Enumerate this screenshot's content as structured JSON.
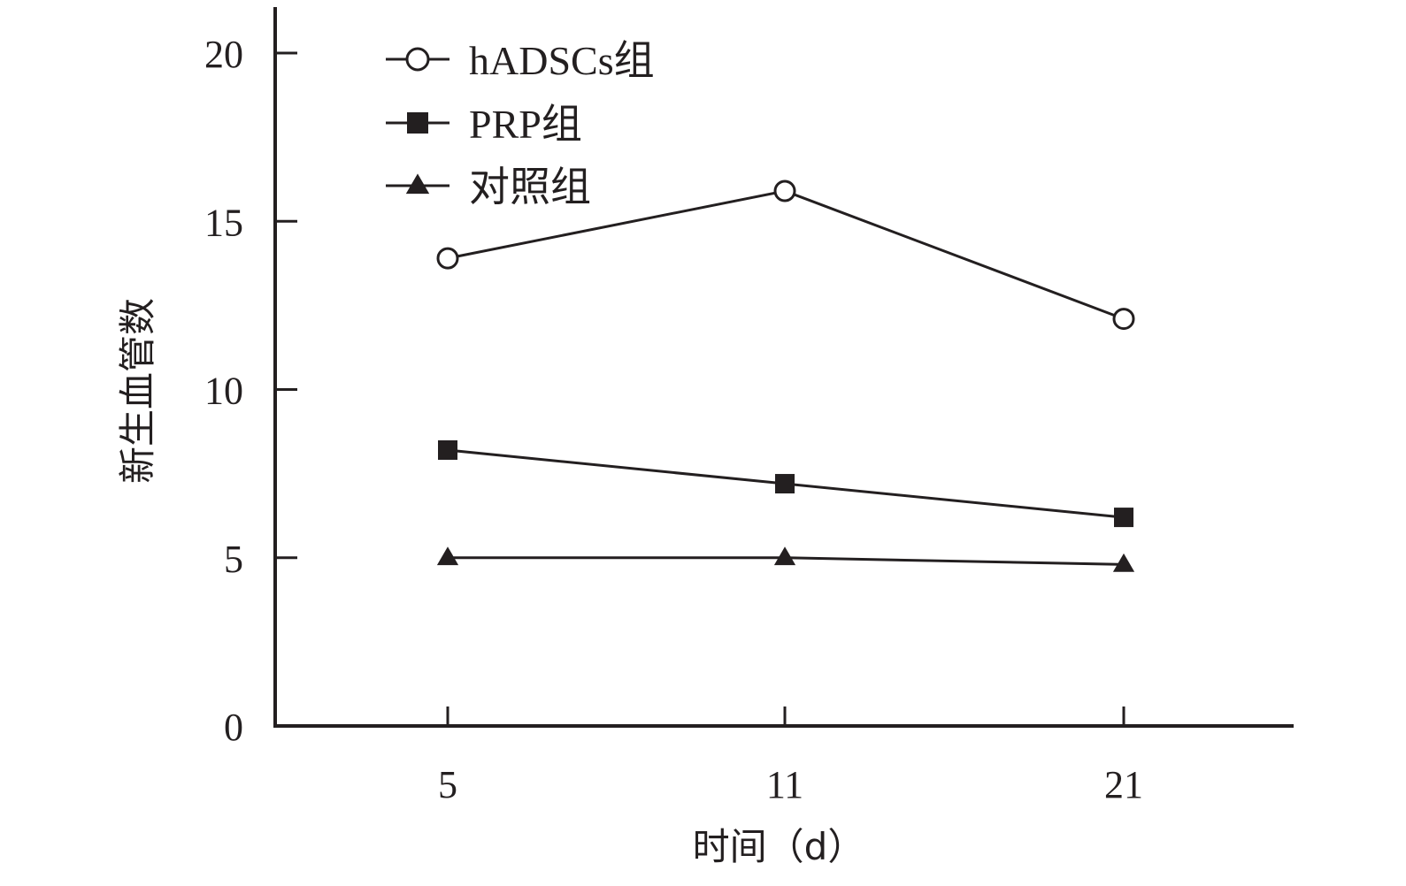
{
  "chart_data": {
    "type": "line",
    "xlabel": "时间（d）",
    "ylabel": "新生血管数",
    "x": [
      5,
      11,
      21
    ],
    "x_tick_labels": [
      "5",
      "11",
      "21"
    ],
    "y_ticks": [
      0,
      5,
      10,
      15,
      20
    ],
    "y_tick_labels": [
      "0",
      "5",
      "10",
      "15",
      "20"
    ],
    "ylim": [
      0,
      21
    ],
    "grid": false,
    "legend_position": "top-left",
    "series": [
      {
        "name": "hADSCs组",
        "marker": "open-circle",
        "color": "#231f20",
        "values": [
          13.9,
          15.9,
          12.1
        ]
      },
      {
        "name": "PRP组",
        "marker": "filled-square",
        "color": "#231f20",
        "values": [
          8.2,
          7.2,
          6.2
        ]
      },
      {
        "name": "对照组",
        "marker": "filled-triangle",
        "color": "#231f20",
        "values": [
          5.0,
          5.0,
          4.8
        ]
      }
    ]
  }
}
